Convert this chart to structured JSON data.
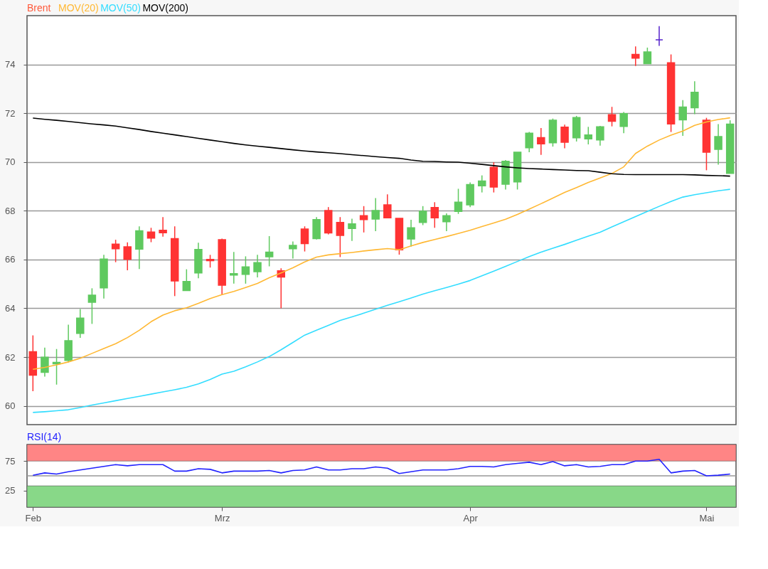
{
  "chart_data": [
    {
      "type": "candlestick",
      "categories": [
        null,
        null,
        null,
        null,
        null,
        null,
        null,
        null,
        null,
        null,
        null,
        null,
        null,
        null,
        null,
        null,
        null,
        null,
        null,
        null,
        null,
        null,
        null,
        null,
        null,
        null,
        null,
        null,
        null,
        null,
        null,
        null,
        null,
        null,
        null,
        null,
        null,
        null,
        null,
        null,
        null,
        null,
        null,
        null,
        null,
        null,
        null,
        null,
        null,
        null,
        null,
        null,
        null,
        null,
        null,
        null,
        null,
        null,
        null,
        null
      ],
      "ylim": [
        59.23,
        76.0
      ],
      "yticks": [
        60,
        62,
        64,
        66,
        68,
        70,
        72,
        74
      ],
      "grid": "y",
      "tick_labels": "y",
      "series": [
        {
          "name": "Brent",
          "type": "candlestick",
          "color": "#ff5a3c",
          "ohlc": [
            [
              62.22,
              62.89,
              60.6,
              61.26
            ],
            [
              61.37,
              62.39,
              61.2,
              61.99
            ],
            [
              61.72,
              62.33,
              60.87,
              61.78
            ],
            [
              61.86,
              63.33,
              61.78,
              62.67
            ],
            [
              62.97,
              63.97,
              62.79,
              63.6
            ],
            [
              64.25,
              64.82,
              63.36,
              64.54
            ],
            [
              64.84,
              66.19,
              64.4,
              66.02
            ],
            [
              66.63,
              66.81,
              65.89,
              66.44
            ],
            [
              66.52,
              66.7,
              65.56,
              66.01
            ],
            [
              66.43,
              67.36,
              65.61,
              67.18
            ],
            [
              67.13,
              67.3,
              66.71,
              66.88
            ],
            [
              67.2,
              67.74,
              66.94,
              67.1
            ],
            [
              66.86,
              67.36,
              64.5,
              65.12
            ],
            [
              64.73,
              65.6,
              64.73,
              65.1
            ],
            [
              65.45,
              66.69,
              65.23,
              66.41
            ],
            [
              66.0,
              66.19,
              65.67,
              65.95
            ],
            [
              66.81,
              66.86,
              64.55,
              64.95
            ],
            [
              65.36,
              66.31,
              65.01,
              65.42
            ],
            [
              65.39,
              66.13,
              65.01,
              65.7
            ],
            [
              65.5,
              66.19,
              65.27,
              65.87
            ],
            [
              66.11,
              66.96,
              65.72,
              66.3
            ],
            [
              65.54,
              65.64,
              64.0,
              65.28
            ],
            [
              66.44,
              66.74,
              66.04,
              66.58
            ],
            [
              67.25,
              67.36,
              66.33,
              66.65
            ],
            [
              66.86,
              67.74,
              66.82,
              67.64
            ],
            [
              68.01,
              68.15,
              67.03,
              67.09
            ],
            [
              67.52,
              67.74,
              66.1,
              66.99
            ],
            [
              67.27,
              67.67,
              66.76,
              67.46
            ],
            [
              67.8,
              68.19,
              67.11,
              67.64
            ],
            [
              67.66,
              68.52,
              67.16,
              68.01
            ],
            [
              68.24,
              68.67,
              67.71,
              67.71
            ],
            [
              67.69,
              67.69,
              66.2,
              66.4
            ],
            [
              66.84,
              67.63,
              66.53,
              67.3
            ],
            [
              67.52,
              68.19,
              67.41,
              67.98
            ],
            [
              68.13,
              68.35,
              67.3,
              67.71
            ],
            [
              67.55,
              67.89,
              67.16,
              67.8
            ],
            [
              67.97,
              68.9,
              67.87,
              68.35
            ],
            [
              68.24,
              69.16,
              68.15,
              69.07
            ],
            [
              69.02,
              69.45,
              68.75,
              69.22
            ],
            [
              69.78,
              69.99,
              68.75,
              68.97
            ],
            [
              69.09,
              70.08,
              68.87,
              70.03
            ],
            [
              69.18,
              70.4,
              68.87,
              70.4
            ],
            [
              70.58,
              71.23,
              70.4,
              71.18
            ],
            [
              71.0,
              71.39,
              70.29,
              70.74
            ],
            [
              70.79,
              71.78,
              70.63,
              71.71
            ],
            [
              71.43,
              71.53,
              70.56,
              70.81
            ],
            [
              70.99,
              71.89,
              70.84,
              71.82
            ],
            [
              70.95,
              71.44,
              70.72,
              71.11
            ],
            [
              70.9,
              71.48,
              70.67,
              71.44
            ],
            [
              71.94,
              72.26,
              71.46,
              71.67
            ],
            [
              71.46,
              72.05,
              71.18,
              71.98
            ],
            [
              74.41,
              74.74,
              73.94,
              74.26
            ],
            [
              74.03,
              74.69,
              74.03,
              74.51
            ],
            [
              75.01,
              75.57,
              74.76,
              75.01
            ],
            [
              74.07,
              74.41,
              71.23,
              71.56
            ],
            [
              71.73,
              72.54,
              71.07,
              72.25
            ],
            [
              72.22,
              73.31,
              71.96,
              72.86
            ],
            [
              71.71,
              71.81,
              69.66,
              70.4
            ],
            [
              70.52,
              71.55,
              69.89,
              71.04
            ],
            [
              69.53,
              71.71,
              69.53,
              71.55
            ]
          ],
          "colors": [
            "#ff3333",
            "#5fc95f",
            "#5fc95f",
            "#5fc95f",
            "#5fc95f",
            "#5fc95f",
            "#5fc95f",
            "#ff3333",
            "#ff3333",
            "#5fc95f",
            "#ff3333",
            "#ff3333",
            "#ff3333",
            "#5fc95f",
            "#5fc95f",
            "#ff3333",
            "#ff3333",
            "#5fc95f",
            "#5fc95f",
            "#5fc95f",
            "#5fc95f",
            "#ff3333",
            "#5fc95f",
            "#ff3333",
            "#5fc95f",
            "#ff3333",
            "#ff3333",
            "#5fc95f",
            "#ff3333",
            "#5fc95f",
            "#ff3333",
            "#ff3333",
            "#5fc95f",
            "#5fc95f",
            "#ff3333",
            "#5fc95f",
            "#5fc95f",
            "#5fc95f",
            "#5fc95f",
            "#ff3333",
            "#5fc95f",
            "#5fc95f",
            "#5fc95f",
            "#ff3333",
            "#5fc95f",
            "#ff3333",
            "#5fc95f",
            "#5fc95f",
            "#5fc95f",
            "#ff3333",
            "#5fc95f",
            "#ff3333",
            "#5fc95f",
            "#5522cc",
            "#ff3333",
            "#5fc95f",
            "#5fc95f",
            "#ff3333",
            "#5fc95f",
            "#5fc95f"
          ]
        },
        {
          "name": "MOV(20)",
          "type": "line",
          "color": "#ffb833",
          "values": [
            61.5,
            61.58,
            61.68,
            61.8,
            61.95,
            62.15,
            62.35,
            62.55,
            62.8,
            63.1,
            63.45,
            63.72,
            63.9,
            64.02,
            64.2,
            64.4,
            64.56,
            64.69,
            64.85,
            65.02,
            65.25,
            65.45,
            65.66,
            65.9,
            66.1,
            66.19,
            66.24,
            66.29,
            66.35,
            66.4,
            66.45,
            66.4,
            66.56,
            66.7,
            66.82,
            66.94,
            67.07,
            67.2,
            67.35,
            67.5,
            67.65,
            67.85,
            68.07,
            68.29,
            68.52,
            68.75,
            68.95,
            69.16,
            69.34,
            69.53,
            69.8,
            70.35,
            70.65,
            70.9,
            71.1,
            71.27,
            71.5,
            71.64,
            71.74,
            71.81
          ]
        },
        {
          "name": "MOV(50)",
          "type": "line",
          "color": "#33ddff",
          "values": [
            59.73,
            59.76,
            59.8,
            59.84,
            59.93,
            60.03,
            60.12,
            60.21,
            60.3,
            60.39,
            60.48,
            60.57,
            60.66,
            60.76,
            60.9,
            61.08,
            61.3,
            61.42,
            61.6,
            61.8,
            62.02,
            62.3,
            62.6,
            62.9,
            63.1,
            63.3,
            63.5,
            63.65,
            63.8,
            63.96,
            64.12,
            64.27,
            64.42,
            64.58,
            64.72,
            64.85,
            64.99,
            65.14,
            65.33,
            65.52,
            65.72,
            65.92,
            66.12,
            66.3,
            66.46,
            66.62,
            66.79,
            66.96,
            67.12,
            67.34,
            67.55,
            67.76,
            67.97,
            68.18,
            68.38,
            68.56,
            68.66,
            68.74,
            68.82,
            68.88
          ]
        },
        {
          "name": "MOV(200)",
          "type": "line",
          "color": "#000000",
          "values": [
            71.8,
            71.75,
            71.71,
            71.66,
            71.61,
            71.56,
            71.52,
            71.47,
            71.4,
            71.33,
            71.25,
            71.18,
            71.11,
            71.04,
            70.97,
            70.9,
            70.83,
            70.76,
            70.7,
            70.65,
            70.6,
            70.55,
            70.5,
            70.45,
            70.41,
            70.38,
            70.34,
            70.3,
            70.26,
            70.22,
            70.18,
            70.15,
            70.08,
            70.03,
            70.02,
            70.0,
            69.99,
            69.95,
            69.9,
            69.85,
            69.8,
            69.76,
            69.73,
            69.71,
            69.69,
            69.67,
            69.65,
            69.64,
            69.58,
            69.52,
            69.49,
            69.48,
            69.48,
            69.48,
            69.48,
            69.48,
            69.47,
            69.45,
            69.44,
            69.42
          ]
        }
      ]
    },
    {
      "type": "line",
      "categories": [
        "Feb",
        null,
        null,
        null,
        null,
        null,
        null,
        null,
        null,
        null,
        null,
        null,
        null,
        null,
        null,
        null,
        "Mrz",
        null,
        null,
        null,
        null,
        null,
        null,
        null,
        null,
        null,
        null,
        null,
        null,
        null,
        null,
        null,
        null,
        null,
        null,
        null,
        null,
        "Apr",
        null,
        null,
        null,
        null,
        null,
        null,
        null,
        null,
        null,
        null,
        null,
        null,
        null,
        null,
        null,
        null,
        null,
        null,
        null,
        "Mai",
        null,
        null
      ],
      "ylim": [
        -3,
        103
      ],
      "yticks": [
        25,
        75
      ],
      "grid": false,
      "bands": [
        {
          "axis": "y",
          "from": 75,
          "to": 103,
          "color": "#ff8585"
        },
        {
          "axis": "y",
          "from": -3,
          "to": 33,
          "color": "#88d888"
        }
      ],
      "ref_lines": [
        {
          "axis": "y",
          "value": 50,
          "color": "#999999"
        }
      ],
      "series": [
        {
          "name": "RSI(14)",
          "color": "#2222ff",
          "values": [
            51,
            55,
            53,
            57,
            60,
            63,
            66,
            69,
            67,
            69,
            69,
            69,
            58,
            58,
            62,
            61,
            55,
            58,
            58,
            58,
            59,
            55,
            59,
            60,
            65,
            60,
            60,
            62,
            62,
            65,
            63,
            54,
            57,
            60,
            60,
            60,
            62,
            66,
            66,
            65,
            69,
            71,
            73,
            69,
            74,
            67,
            69,
            65,
            66,
            69,
            69,
            75,
            75,
            78,
            55,
            58,
            59,
            50,
            51,
            53
          ]
        }
      ]
    }
  ]
}
